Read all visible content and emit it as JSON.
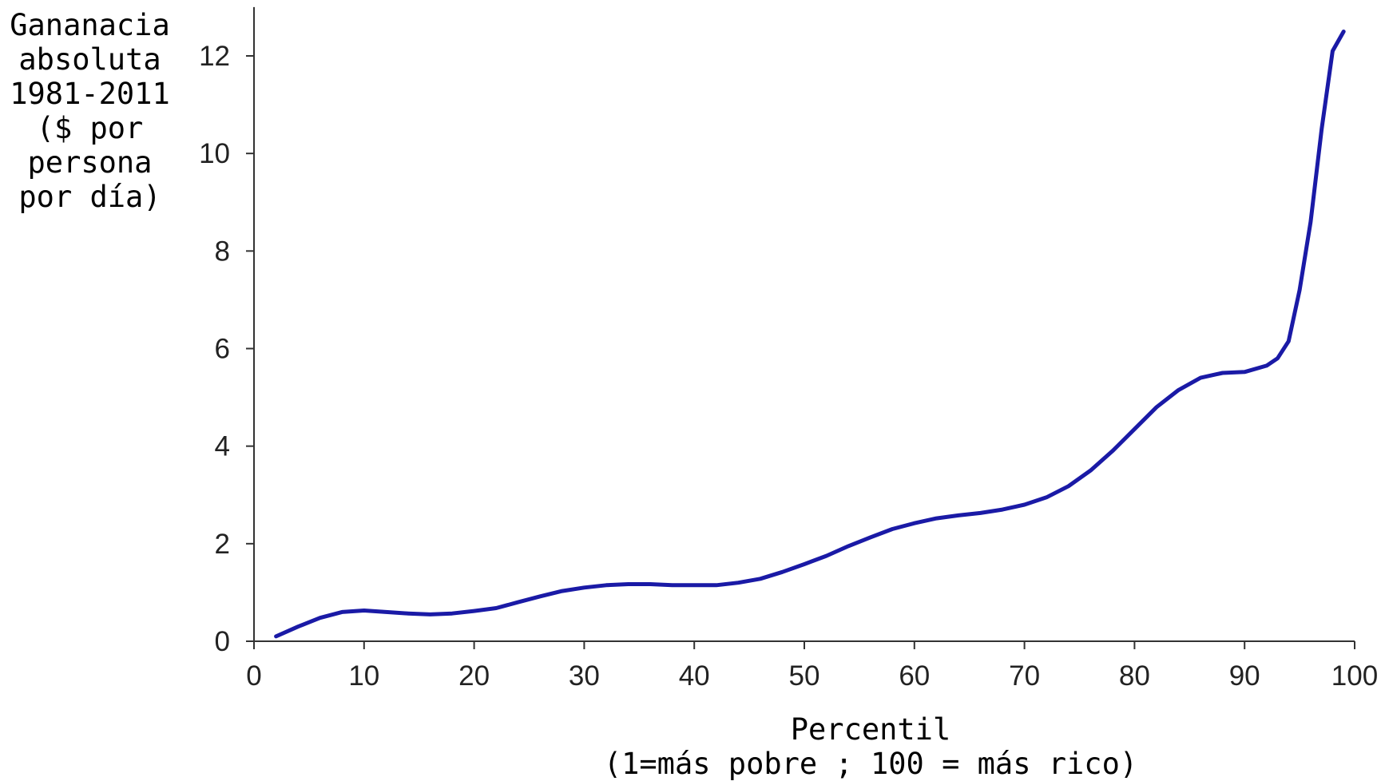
{
  "chart_data": {
    "type": "line",
    "ylabel_lines": [
      "Gananacia",
      "absoluta",
      "1981-2011",
      "($ por",
      "persona",
      "por día)"
    ],
    "xlabel_lines": [
      "Percentil",
      "(1=más pobre ; 100 = más rico)"
    ],
    "xlim": [
      0,
      100
    ],
    "ylim": [
      0,
      13
    ],
    "x_ticks": [
      0,
      10,
      20,
      30,
      40,
      50,
      60,
      70,
      80,
      90,
      100
    ],
    "y_ticks": [
      0,
      2,
      4,
      6,
      8,
      10,
      12
    ],
    "grid": false,
    "series": [
      {
        "color": "#1a1aa6",
        "x": [
          2,
          4,
          6,
          8,
          10,
          12,
          14,
          16,
          18,
          20,
          22,
          24,
          26,
          28,
          30,
          32,
          34,
          36,
          38,
          40,
          42,
          44,
          46,
          48,
          50,
          52,
          54,
          56,
          58,
          60,
          62,
          64,
          66,
          68,
          70,
          72,
          74,
          76,
          78,
          80,
          82,
          84,
          86,
          88,
          90,
          92,
          93,
          94,
          95,
          96,
          97,
          98,
          99
        ],
        "y": [
          0.1,
          0.3,
          0.48,
          0.6,
          0.63,
          0.6,
          0.57,
          0.55,
          0.57,
          0.62,
          0.68,
          0.8,
          0.92,
          1.03,
          1.1,
          1.15,
          1.17,
          1.17,
          1.15,
          1.15,
          1.15,
          1.2,
          1.28,
          1.42,
          1.58,
          1.75,
          1.95,
          2.13,
          2.3,
          2.42,
          2.52,
          2.58,
          2.63,
          2.7,
          2.8,
          2.95,
          3.18,
          3.5,
          3.9,
          4.35,
          4.8,
          5.15,
          5.4,
          5.5,
          5.52,
          5.65,
          5.8,
          6.15,
          7.2,
          8.6,
          10.5,
          12.1,
          12.5
        ]
      }
    ]
  }
}
